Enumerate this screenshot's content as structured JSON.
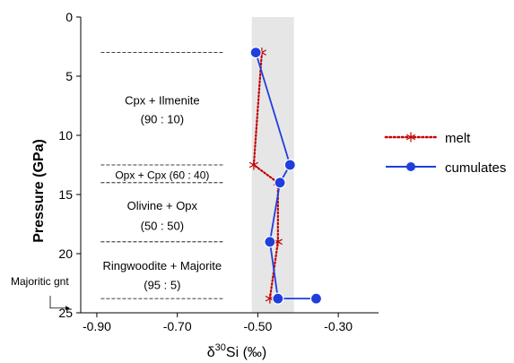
{
  "chart_data": {
    "type": "line",
    "xlabel": "δ³⁰Si (‰)",
    "xlabel_parts": {
      "delta": "δ",
      "superscript": "30",
      "rest": "Si (‰)"
    },
    "ylabel": "Pressure (GPa)",
    "xlim": [
      -0.94,
      -0.2
    ],
    "ylim": [
      0,
      25
    ],
    "y_inverted": true,
    "x_ticks": [
      -0.9,
      -0.7,
      -0.5,
      -0.3
    ],
    "x_tick_labels": [
      "-0.90",
      "-0.70",
      "-0.50",
      "-0.30"
    ],
    "y_ticks": [
      0,
      5,
      10,
      15,
      20,
      25
    ],
    "y_tick_labels": [
      "0",
      "5",
      "10",
      "15",
      "20",
      "25"
    ],
    "grid": false,
    "legend_position": "right",
    "shaded_band": {
      "x_min": -0.515,
      "x_max": -0.41,
      "color": "#e6e6e6"
    },
    "series": [
      {
        "name": "melt",
        "color": "#c00000",
        "line_style": "dotted",
        "marker": "asterisk",
        "points": [
          {
            "x": -0.49,
            "y": 3.0
          },
          {
            "x": -0.51,
            "y": 12.5
          },
          {
            "x": -0.45,
            "y": 14.0
          },
          {
            "x": -0.45,
            "y": 19.0
          },
          {
            "x": -0.47,
            "y": 23.8
          }
        ]
      },
      {
        "name": "cumulates",
        "color": "#1f3fdc",
        "line_style": "solid",
        "marker": "circle",
        "points": [
          {
            "x": -0.505,
            "y": 3.0
          },
          {
            "x": -0.42,
            "y": 12.5
          },
          {
            "x": -0.445,
            "y": 14.0
          },
          {
            "x": -0.47,
            "y": 19.0
          },
          {
            "x": -0.45,
            "y": 23.8
          },
          {
            "x": -0.355,
            "y": 23.8
          }
        ]
      }
    ],
    "boundaries": [
      3.0,
      12.5,
      14.0,
      19.0,
      23.8
    ],
    "boundary_x_range": [
      -0.89,
      -0.585
    ],
    "phase_zones": [
      {
        "label": "Cpx + Ilmenite",
        "ratio": "(90 : 10)",
        "label_y": 7.0,
        "ratio_y": 8.6
      },
      {
        "label": "Opx + Cpx (60 : 40)",
        "ratio": "",
        "label_y": 13.3,
        "ratio_y": 13.3
      },
      {
        "label": "Olivine + Opx",
        "ratio": "(50 : 50)",
        "label_y": 15.9,
        "ratio_y": 17.6
      },
      {
        "label": "Ringwoodite + Majorite",
        "ratio": "(95 : 5)",
        "label_y": 21.0,
        "ratio_y": 22.6
      }
    ],
    "annotations": [
      {
        "text": "Majoritic gnt",
        "points_to_y": 24.6
      }
    ]
  }
}
